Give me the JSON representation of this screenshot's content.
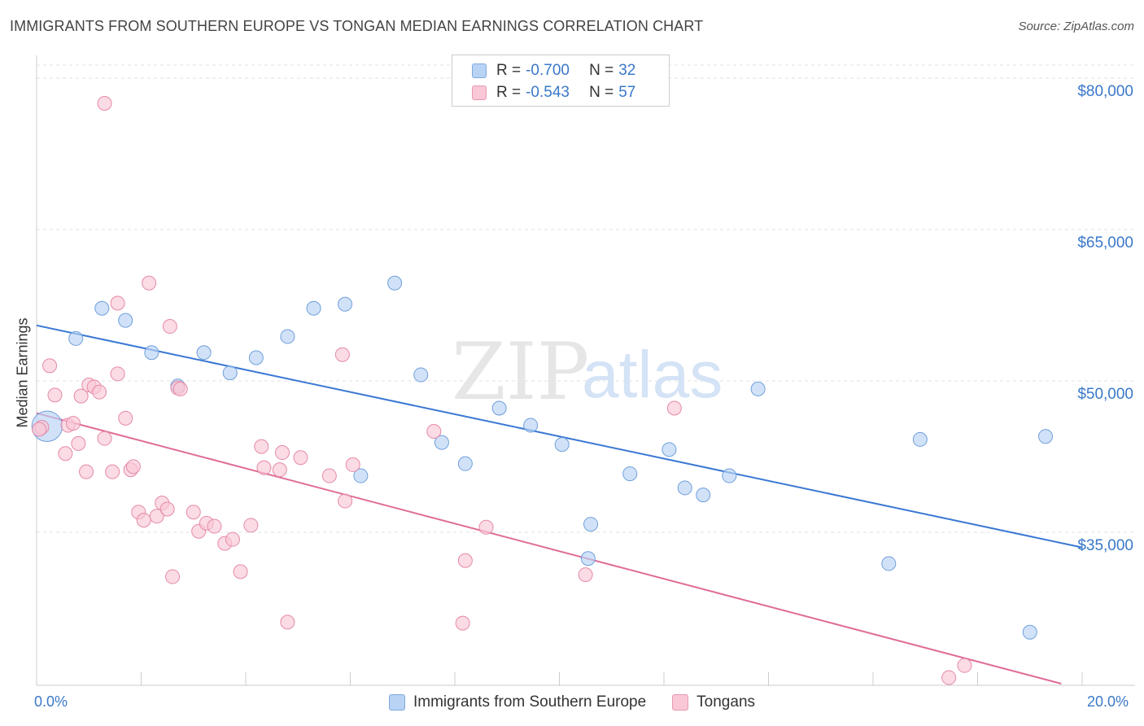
{
  "header": {
    "title": "IMMIGRANTS FROM SOUTHERN EUROPE VS TONGAN MEDIAN EARNINGS CORRELATION CHART",
    "source": "Source: ZipAtlas.com"
  },
  "watermark": {
    "zip": "ZIP",
    "atlas": "atlas"
  },
  "stats_legend": [
    {
      "r_label": "R =",
      "r_value": "-0.700",
      "n_label": "N =",
      "n_value": "32",
      "color": "#b8d3f4",
      "border": "#7fa9de"
    },
    {
      "r_label": "R =",
      "r_value": "-0.543",
      "n_label": "N =",
      "n_value": "57",
      "color": "#f9c7d6",
      "border": "#e898b0"
    }
  ],
  "bottom_legend": [
    {
      "label": "Immigrants from Southern Europe",
      "color": "#b8d3f4",
      "border": "#7fa9de"
    },
    {
      "label": "Tongans",
      "color": "#f9c7d6",
      "border": "#e898b0"
    }
  ],
  "axis": {
    "ylabel": "Median Earnings",
    "x_min_label": "0.0%",
    "x_max_label": "20.0%",
    "y_tick_labels": [
      "$80,000",
      "$65,000",
      "$50,000",
      "$35,000"
    ]
  },
  "colors": {
    "blue_line": "#3a78d4",
    "pink_line": "#e06c98",
    "blue_fill": "#b8d3f4",
    "blue_stroke": "#6f9fdc",
    "pink_fill": "#f9c7d6",
    "pink_stroke": "#e58aa8",
    "tick_label": "#3a78c9",
    "grid": "#e2e2e2"
  },
  "chart_data": {
    "type": "scatter",
    "xlabel": "",
    "ylabel": "Median Earnings",
    "xlim": [
      0,
      20
    ],
    "ylim": [
      20000,
      83000
    ],
    "y_ticks": [
      35000,
      50000,
      65000,
      80000
    ],
    "grid": true,
    "series": [
      {
        "name": "Immigrants from Southern Europe",
        "trend": {
          "x": [
            0,
            20
          ],
          "y": [
            55500,
            33500
          ]
        },
        "points": [
          [
            0.2,
            45500,
            2.2
          ],
          [
            0.75,
            54200,
            1
          ],
          [
            1.25,
            57200,
            1
          ],
          [
            1.7,
            56000,
            1
          ],
          [
            2.2,
            52800,
            1
          ],
          [
            2.7,
            49500,
            1
          ],
          [
            3.2,
            52800,
            1
          ],
          [
            3.7,
            50800,
            1
          ],
          [
            4.2,
            52300,
            1
          ],
          [
            4.8,
            54400,
            1
          ],
          [
            5.3,
            57200,
            1
          ],
          [
            5.9,
            57600,
            1
          ],
          [
            6.2,
            40600,
            1
          ],
          [
            6.85,
            59700,
            1
          ],
          [
            7.35,
            50600,
            1
          ],
          [
            7.75,
            43900,
            1
          ],
          [
            8.2,
            41800,
            1
          ],
          [
            8.85,
            47300,
            1
          ],
          [
            9.45,
            45600,
            1
          ],
          [
            10.05,
            43700,
            1
          ],
          [
            10.6,
            35800,
            1
          ],
          [
            10.55,
            32400,
            1
          ],
          [
            11.35,
            40800,
            1
          ],
          [
            12.1,
            43200,
            1
          ],
          [
            12.4,
            39400,
            1
          ],
          [
            12.75,
            38700,
            1
          ],
          [
            13.25,
            40600,
            1
          ],
          [
            13.8,
            49200,
            1
          ],
          [
            16.3,
            31900,
            1
          ],
          [
            16.9,
            44200,
            1
          ],
          [
            19.0,
            25100,
            1
          ],
          [
            19.3,
            44500,
            1
          ]
        ]
      },
      {
        "name": "Tongans",
        "trend": {
          "x": [
            0,
            19.6
          ],
          "y": [
            46800,
            20000
          ]
        },
        "points": [
          [
            0.1,
            45400,
            1
          ],
          [
            0.25,
            51500,
            1
          ],
          [
            0.35,
            48600,
            1
          ],
          [
            0.55,
            42800,
            1
          ],
          [
            0.6,
            45600,
            1
          ],
          [
            0.7,
            45800,
            1
          ],
          [
            0.8,
            43800,
            1
          ],
          [
            0.85,
            48500,
            1
          ],
          [
            0.95,
            41000,
            1
          ],
          [
            1.0,
            49600,
            1
          ],
          [
            1.1,
            49400,
            1
          ],
          [
            1.2,
            48900,
            1
          ],
          [
            1.3,
            44300,
            1
          ],
          [
            1.45,
            41000,
            1
          ],
          [
            1.55,
            50700,
            1
          ],
          [
            1.7,
            46300,
            1
          ],
          [
            1.8,
            41200,
            1
          ],
          [
            1.85,
            41500,
            1
          ],
          [
            1.95,
            37000,
            1
          ],
          [
            2.05,
            36200,
            1
          ],
          [
            2.15,
            59700,
            1
          ],
          [
            2.3,
            36600,
            1
          ],
          [
            2.4,
            37900,
            1
          ],
          [
            2.5,
            37300,
            1
          ],
          [
            2.55,
            55400,
            1
          ],
          [
            2.6,
            30600,
            1
          ],
          [
            2.7,
            49300,
            1
          ],
          [
            3.0,
            37000,
            1
          ],
          [
            3.1,
            35100,
            1
          ],
          [
            3.25,
            35900,
            1
          ],
          [
            3.4,
            35600,
            1
          ],
          [
            3.6,
            33900,
            1
          ],
          [
            3.75,
            34300,
            1
          ],
          [
            3.9,
            31100,
            1
          ],
          [
            4.1,
            35700,
            1
          ],
          [
            4.3,
            43500,
            1
          ],
          [
            4.35,
            41400,
            1
          ],
          [
            4.65,
            41200,
            1
          ],
          [
            4.7,
            42900,
            1
          ],
          [
            4.8,
            26100,
            1
          ],
          [
            5.05,
            42400,
            1
          ],
          [
            5.6,
            40600,
            1
          ],
          [
            5.85,
            52600,
            1
          ],
          [
            5.9,
            38100,
            1
          ],
          [
            6.05,
            41700,
            1
          ],
          [
            7.6,
            45000,
            1
          ],
          [
            8.2,
            32200,
            1
          ],
          [
            8.15,
            26000,
            1
          ],
          [
            8.6,
            35500,
            1
          ],
          [
            10.5,
            30800,
            1
          ],
          [
            12.2,
            47300,
            1
          ],
          [
            17.45,
            20600,
            1
          ],
          [
            17.75,
            21800,
            1
          ],
          [
            1.3,
            77500,
            1
          ],
          [
            1.55,
            57700,
            1
          ],
          [
            0.05,
            45200,
            1
          ],
          [
            2.75,
            49200,
            1
          ]
        ]
      }
    ]
  }
}
